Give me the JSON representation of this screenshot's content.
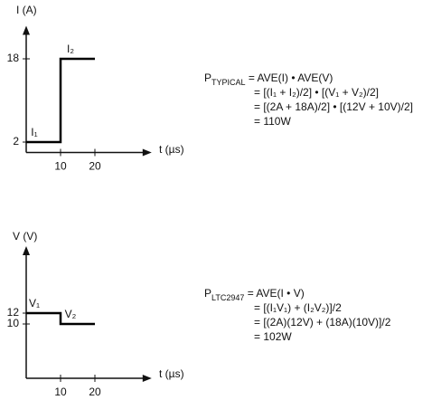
{
  "chart_data": [
    {
      "type": "step",
      "ylabel": "I (A)",
      "xlabel": "t (µs)",
      "x": [
        0,
        10,
        10,
        20
      ],
      "values": [
        2,
        2,
        18,
        18
      ],
      "segment_labels": [
        "I₁",
        "I₂"
      ],
      "color": "#000000",
      "xlim": [
        0,
        36
      ],
      "ylim": [
        0,
        24
      ],
      "xticks": [
        10,
        20
      ],
      "yticks": [
        2,
        18
      ]
    },
    {
      "type": "step",
      "ylabel": "V (V)",
      "xlabel": "t (µs)",
      "x": [
        0,
        10,
        10,
        20
      ],
      "values": [
        12,
        12,
        10,
        10
      ],
      "segment_labels": [
        "V₁",
        "V₂"
      ],
      "color": "#000000",
      "xlim": [
        0,
        36
      ],
      "ylim": [
        0,
        24
      ],
      "xticks": [
        10,
        20
      ],
      "yticks": [
        12,
        10
      ]
    }
  ],
  "equations": [
    {
      "lines": [
        [
          {
            "text": "P"
          },
          {
            "text": "TYPICAL",
            "sub": true
          },
          {
            "text": " = AVE(I) • AVE(V)"
          }
        ],
        [
          {
            "text": "= [(I₁ + I₂)/2] • [(V₁ + V₂)/2]"
          }
        ],
        [
          {
            "text": "= [(2A + 18A)/2] • [(12V + 10V)/2]"
          }
        ],
        [
          {
            "text": "= 110W"
          }
        ]
      ]
    },
    {
      "lines": [
        [
          {
            "text": "P"
          },
          {
            "text": "LTC2947",
            "sub": true
          },
          {
            "text": " = AVE(I • V)"
          }
        ],
        [
          {
            "text": "= [(I₁V₁) + (I₂V₂)]/2"
          }
        ],
        [
          {
            "text": "= [(2A)(12V) + (18A)(10V)]/2"
          }
        ],
        [
          {
            "text": "= 102W"
          }
        ]
      ]
    }
  ]
}
